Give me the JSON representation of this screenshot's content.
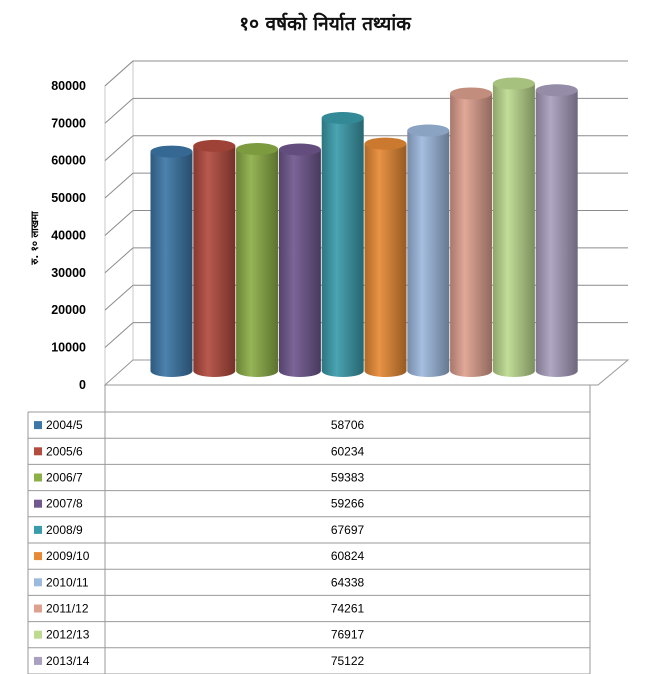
{
  "chart_data": {
    "type": "bar",
    "title": "१० वर्षको निर्यात तथ्यांक",
    "xlabel": "",
    "ylabel": "रु. १० लाखमा",
    "ylim": [
      0,
      80000
    ],
    "yticks": [
      "0",
      "10000",
      "20000",
      "30000",
      "40000",
      "50000",
      "60000",
      "70000",
      "80000"
    ],
    "grid": true,
    "legend": "data-table",
    "categories": [
      "2004/5",
      "2005/6",
      "2006/7",
      "2007/8",
      "2008/9",
      "2009/10",
      "2010/11",
      "2011/12",
      "2012/13",
      "2013/14"
    ],
    "values": [
      58706,
      60234,
      59383,
      59266,
      67697,
      60824,
      64338,
      74261,
      76917,
      75122
    ],
    "table_values": [
      "58706",
      "60234",
      "59383",
      "59266",
      "67697",
      "60824",
      "64338",
      "74261",
      "76917",
      "75122"
    ],
    "colors": [
      "#3C77A7",
      "#B34B3E",
      "#8DAF47",
      "#70588F",
      "#3A9CAB",
      "#E78A35",
      "#9DB9DE",
      "#DEA08F",
      "#BDDA8F",
      "#A99FBE"
    ]
  }
}
